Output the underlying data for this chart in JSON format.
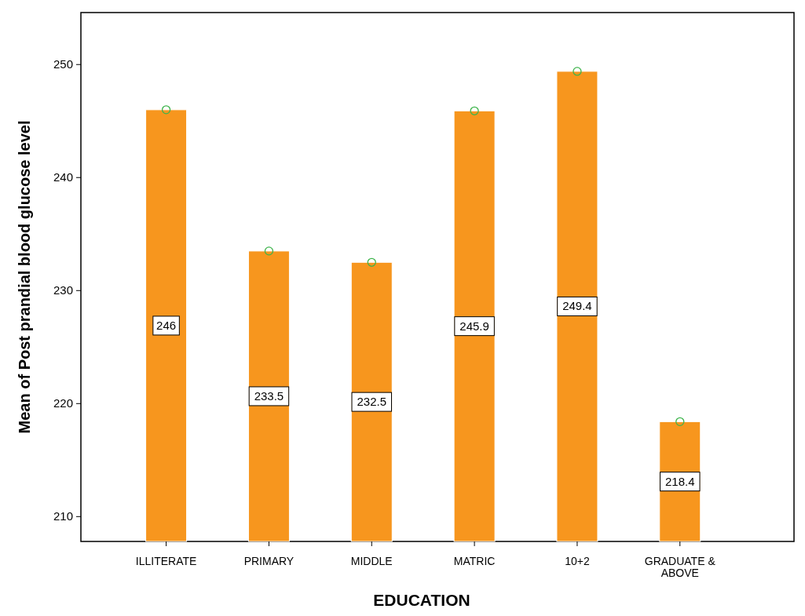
{
  "chart_data": {
    "type": "bar",
    "xlabel": "EDUCATION",
    "ylabel": "Mean of Post prandial blood glucose level",
    "categories": [
      "ILLITERATE",
      "PRIMARY",
      "MIDDLE",
      "MATRIC",
      "10+2",
      "GRADUATE &\nABOVE"
    ],
    "series": [
      {
        "color": "#f7961e",
        "data_labels": true,
        "values": [
          246,
          233.5,
          232.5,
          245.9,
          249.4,
          218.4
        ]
      },
      {
        "type": "scatter",
        "color": "#3cb44b",
        "marker": "circle",
        "x": [
          "ILLITERATE",
          "PRIMARY",
          "MIDDLE",
          "MATRIC",
          "10+2",
          "GRADUATE &\nABOVE"
        ],
        "values": [
          246,
          233.5,
          232.5,
          245.9,
          249.4,
          218.4
        ]
      }
    ],
    "ylim": [
      207.8,
      254.6
    ],
    "yticks": [
      210,
      220,
      230,
      240,
      250
    ]
  }
}
